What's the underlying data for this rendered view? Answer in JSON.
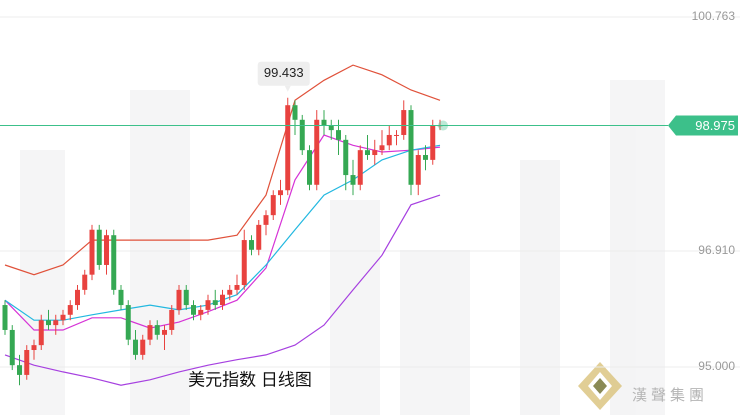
{
  "chart_data": {
    "type": "candlestick",
    "title": "美元指数 日线图",
    "brand": "漢聲集團",
    "up_color": "#e8423f",
    "down_color": "#35a853",
    "ylim": [
      94.21,
      101.042
    ],
    "yticks": [
      100.763,
      {
        "value": 96.91,
        "label": "96.910"
      },
      {
        "value": 95,
        "label": "95.000"
      }
    ],
    "grid": true,
    "last_price": 98.975,
    "last_price_color": "#3cc08a",
    "high_annotation": 99.433,
    "ohlc": [
      [
        96.02,
        96.1,
        95.53,
        95.61
      ],
      [
        95.61,
        95.69,
        94.95,
        95.03
      ],
      [
        95.03,
        95.2,
        94.7,
        94.87
      ],
      [
        94.87,
        95.36,
        94.79,
        95.28
      ],
      [
        95.28,
        95.45,
        95.12,
        95.36
      ],
      [
        95.36,
        95.86,
        95.28,
        95.77
      ],
      [
        95.77,
        95.94,
        95.61,
        95.69
      ],
      [
        95.69,
        95.86,
        95.53,
        95.77
      ],
      [
        95.77,
        95.94,
        95.69,
        95.86
      ],
      [
        95.86,
        96.1,
        95.77,
        96.02
      ],
      [
        96.02,
        96.35,
        95.94,
        96.27
      ],
      [
        96.27,
        96.6,
        96.19,
        96.52
      ],
      [
        96.52,
        97.34,
        96.43,
        97.26
      ],
      [
        97.26,
        97.34,
        96.6,
        96.68
      ],
      [
        96.68,
        97.26,
        96.52,
        97.17
      ],
      [
        97.17,
        97.26,
        96.19,
        96.27
      ],
      [
        96.27,
        96.35,
        95.94,
        96.02
      ],
      [
        96.02,
        96.1,
        95.36,
        95.45
      ],
      [
        95.45,
        95.61,
        95.12,
        95.2
      ],
      [
        95.2,
        95.53,
        95.12,
        95.45
      ],
      [
        95.45,
        95.77,
        95.36,
        95.69
      ],
      [
        95.69,
        95.77,
        95.45,
        95.53
      ],
      [
        95.53,
        95.69,
        95.28,
        95.61
      ],
      [
        95.61,
        96.02,
        95.53,
        95.94
      ],
      [
        95.94,
        96.35,
        95.86,
        96.27
      ],
      [
        96.27,
        96.35,
        95.94,
        96.02
      ],
      [
        96.02,
        96.1,
        95.77,
        95.86
      ],
      [
        95.86,
        96.02,
        95.77,
        95.94
      ],
      [
        95.94,
        96.19,
        95.86,
        96.1
      ],
      [
        96.1,
        96.27,
        95.94,
        96.02
      ],
      [
        96.02,
        96.27,
        95.94,
        96.19
      ],
      [
        96.19,
        96.35,
        96.1,
        96.27
      ],
      [
        96.27,
        96.52,
        96.19,
        96.35
      ],
      [
        96.35,
        97.26,
        96.27,
        97.09
      ],
      [
        97.09,
        97.17,
        96.84,
        96.93
      ],
      [
        96.93,
        97.42,
        96.84,
        97.34
      ],
      [
        97.34,
        97.58,
        97.17,
        97.5
      ],
      [
        97.5,
        97.91,
        97.42,
        97.83
      ],
      [
        97.83,
        98.08,
        97.67,
        97.91
      ],
      [
        97.91,
        99.433,
        97.83,
        99.31
      ],
      [
        99.31,
        99.39,
        98.82,
        99.07
      ],
      [
        99.07,
        99.15,
        98.49,
        98.57
      ],
      [
        98.57,
        98.65,
        97.91,
        98.0
      ],
      [
        98.0,
        99.23,
        97.91,
        99.07
      ],
      [
        99.07,
        99.23,
        98.82,
        98.98
      ],
      [
        98.98,
        99.07,
        98.74,
        98.9
      ],
      [
        98.9,
        99.07,
        98.49,
        98.74
      ],
      [
        98.74,
        98.82,
        97.91,
        98.16
      ],
      [
        98.16,
        98.41,
        97.83,
        98.0
      ],
      [
        98.0,
        98.65,
        97.91,
        98.57
      ],
      [
        98.57,
        98.82,
        98.41,
        98.49
      ],
      [
        98.49,
        98.74,
        98.33,
        98.57
      ],
      [
        98.57,
        98.9,
        98.49,
        98.65
      ],
      [
        98.65,
        98.98,
        98.57,
        98.82
      ],
      [
        98.82,
        98.9,
        98.65,
        98.82
      ],
      [
        98.82,
        99.39,
        98.74,
        99.23
      ],
      [
        99.23,
        99.31,
        97.83,
        98.0
      ],
      [
        98.0,
        98.57,
        97.83,
        98.49
      ],
      [
        98.49,
        98.65,
        98.24,
        98.41
      ],
      [
        98.41,
        99.07,
        98.33,
        98.98
      ],
      [
        98.98,
        99.07,
        98.9,
        98.98
      ]
    ],
    "lines": [
      {
        "color": "#e0513a",
        "values": [
          96.68,
          96.52,
          96.68,
          97.09,
          97.09,
          97.09,
          97.09,
          97.09,
          97.17,
          97.83,
          99.39,
          99.72,
          99.97,
          99.81,
          99.56,
          99.39
        ]
      },
      {
        "color": "#a640e0",
        "values": [
          95.2,
          95.03,
          94.92,
          94.82,
          94.7,
          94.79,
          94.92,
          95.03,
          95.12,
          95.2,
          95.36,
          95.69,
          96.27,
          96.84,
          97.67,
          97.83
        ]
      },
      {
        "color": "#d633d6",
        "values": [
          96.1,
          95.61,
          95.61,
          95.81,
          95.81,
          95.64,
          95.74,
          95.91,
          96.1,
          96.63,
          98.08,
          98.82,
          98.65,
          98.54,
          98.57,
          98.62
        ]
      },
      {
        "color": "#22b8e0",
        "values": [
          96.1,
          95.77,
          95.77,
          95.86,
          95.94,
          96.02,
          95.94,
          96.02,
          96.19,
          96.68,
          97.26,
          97.83,
          98.08,
          98.41,
          98.57,
          98.65
        ]
      }
    ]
  }
}
